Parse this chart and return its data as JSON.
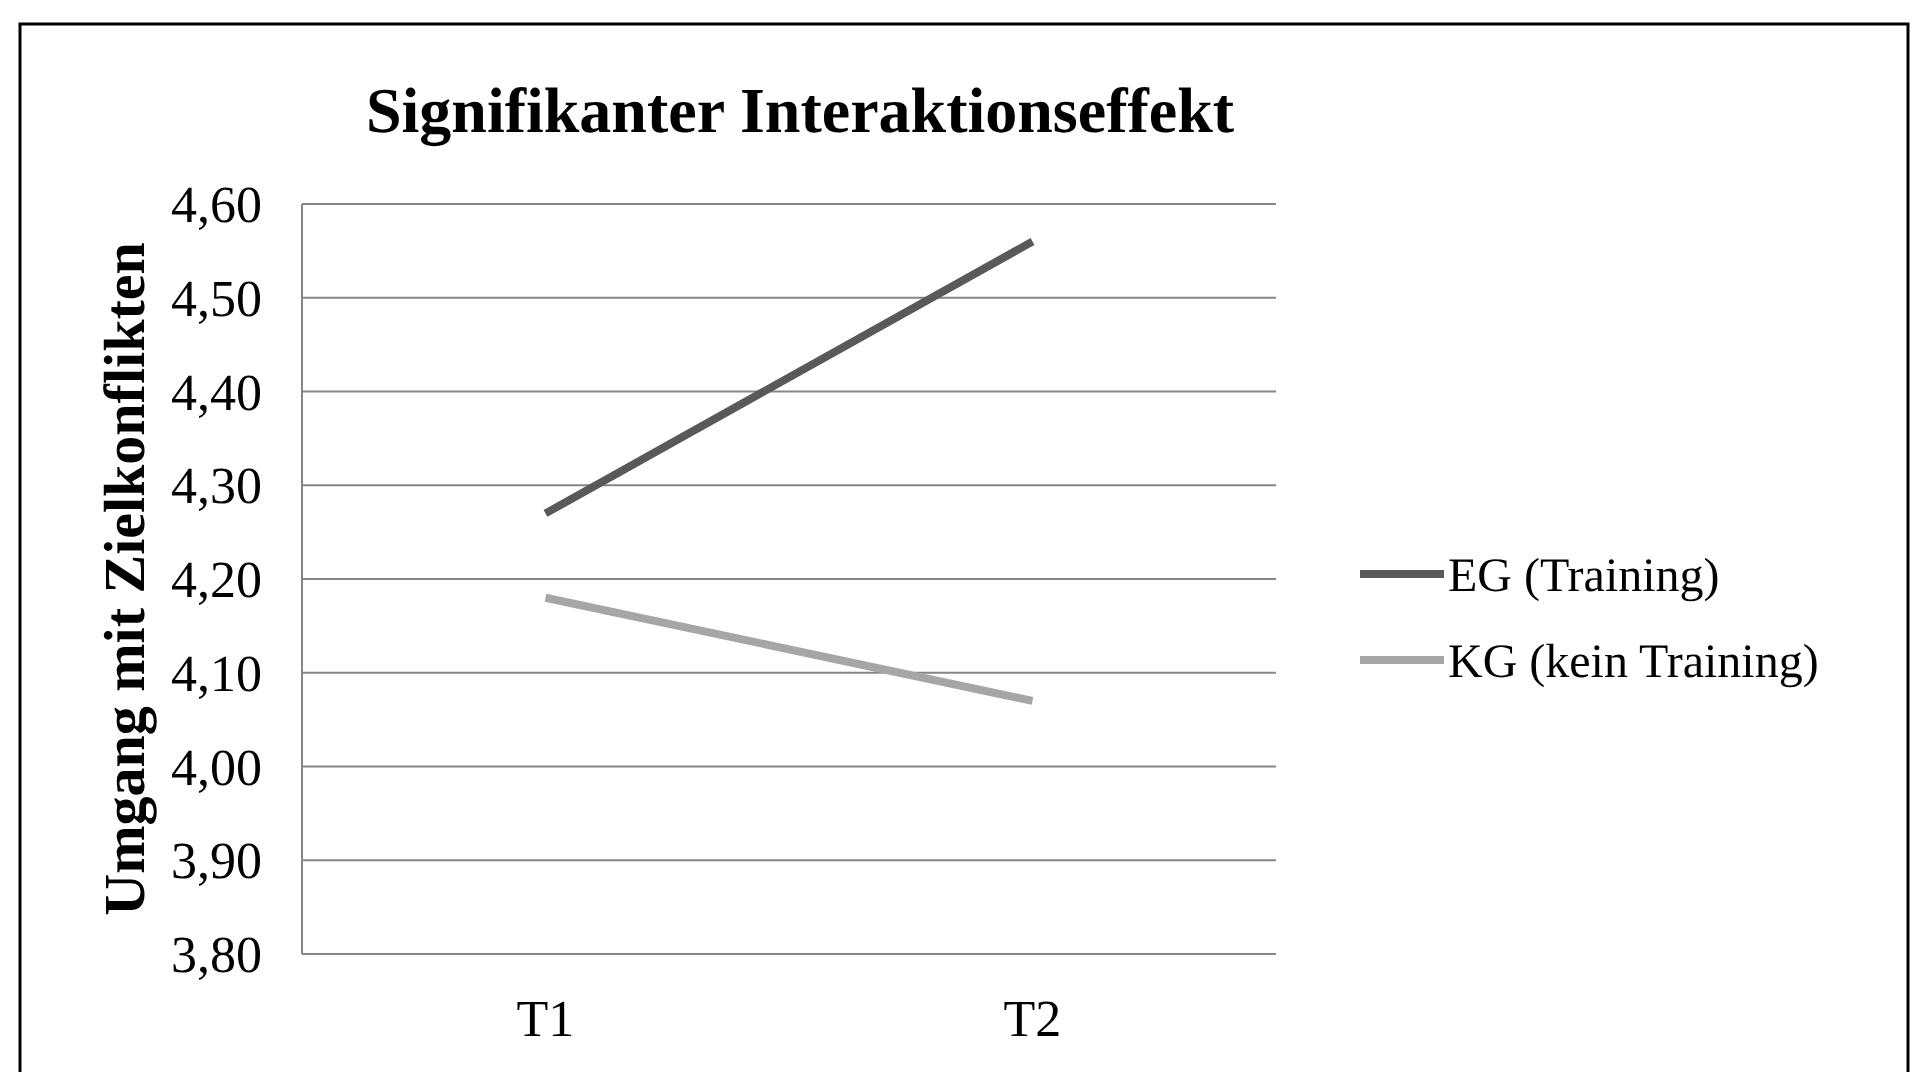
{
  "chart_data": {
    "type": "line",
    "title": "Signifikanter Interaktionseffekt",
    "ylabel": "Umgang mit Zielkonflikten",
    "categories": [
      "T1",
      "T2"
    ],
    "series": [
      {
        "name": "EG (Training)",
        "color": "#595959",
        "values": [
          4.27,
          4.56
        ]
      },
      {
        "name": "KG (kein Training)",
        "color": "#a6a6a6",
        "values": [
          4.18,
          4.07
        ]
      }
    ],
    "ylim": [
      3.8,
      4.6
    ],
    "yticks": [
      {
        "value": 3.8,
        "label": "3,80"
      },
      {
        "value": 3.9,
        "label": "3,90"
      },
      {
        "value": 4.0,
        "label": "4,00"
      },
      {
        "value": 4.1,
        "label": "4,10"
      },
      {
        "value": 4.2,
        "label": "4,20"
      },
      {
        "value": 4.3,
        "label": "4,30"
      },
      {
        "value": 4.4,
        "label": "4,40"
      },
      {
        "value": 4.5,
        "label": "4,50"
      },
      {
        "value": 4.6,
        "label": "4,60"
      }
    ],
    "grid": "y",
    "legend": "right",
    "marker": "none",
    "line_style": "solid"
  }
}
